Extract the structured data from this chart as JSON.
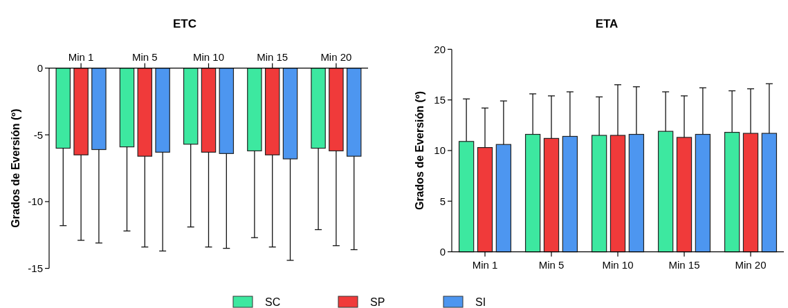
{
  "chart_data": [
    {
      "type": "bar",
      "title": "ETC",
      "ylabel": "Grados de Eversión (º)",
      "categories": [
        "Min 1",
        "Min 5",
        "Min 10",
        "Min 15",
        "Min 20"
      ],
      "ylim": [
        -15,
        0
      ],
      "yticks": [
        -15,
        -10,
        -5,
        0
      ],
      "legend": "bottom",
      "series": [
        {
          "name": "SC",
          "color": "#3de8a0",
          "values": [
            -6.0,
            -5.9,
            -5.7,
            -6.2,
            -6.0
          ],
          "errors": [
            [
              -11.8,
              -6.0
            ],
            [
              -12.2,
              -5.9
            ],
            [
              -11.9,
              -5.7
            ],
            [
              -12.7,
              -6.2
            ],
            [
              -12.1,
              -6.0
            ]
          ]
        },
        {
          "name": "SP",
          "color": "#f03a3a",
          "values": [
            -6.5,
            -6.6,
            -6.3,
            -6.5,
            -6.2
          ],
          "errors": [
            [
              -12.9,
              -6.5
            ],
            [
              -13.4,
              -6.6
            ],
            [
              -13.4,
              -6.3
            ],
            [
              -13.4,
              -6.5
            ],
            [
              -13.3,
              -6.2
            ]
          ]
        },
        {
          "name": "SI",
          "color": "#4d96f0",
          "values": [
            -6.1,
            -6.3,
            -6.4,
            -6.8,
            -6.6
          ],
          "errors": [
            [
              -13.1,
              -6.1
            ],
            [
              -13.7,
              -6.3
            ],
            [
              -13.5,
              -6.4
            ],
            [
              -14.4,
              -6.8
            ],
            [
              -13.6,
              -6.6
            ]
          ]
        }
      ]
    },
    {
      "type": "bar",
      "title": "ETA",
      "ylabel": "Grados de Eversión (º)",
      "categories": [
        "Min 1",
        "Min 5",
        "Min 10",
        "Min 15",
        "Min 20"
      ],
      "ylim": [
        0,
        20
      ],
      "yticks": [
        0,
        5,
        10,
        15,
        20
      ],
      "series": [
        {
          "color": "#3de8a0",
          "values": [
            10.9,
            11.6,
            11.5,
            11.9,
            11.8
          ],
          "errors": [
            [
              10.9,
              15.1
            ],
            [
              11.6,
              15.6
            ],
            [
              11.5,
              15.3
            ],
            [
              11.9,
              15.8
            ],
            [
              11.8,
              15.9
            ]
          ]
        },
        {
          "color": "#f03a3a",
          "values": [
            10.3,
            11.2,
            11.5,
            11.3,
            11.7
          ],
          "errors": [
            [
              10.3,
              14.2
            ],
            [
              11.2,
              15.4
            ],
            [
              11.5,
              16.5
            ],
            [
              11.3,
              15.4
            ],
            [
              11.7,
              16.1
            ]
          ]
        },
        {
          "color": "#4d96f0",
          "values": [
            10.6,
            11.4,
            11.6,
            11.6,
            11.7
          ],
          "errors": [
            [
              10.6,
              14.9
            ],
            [
              11.4,
              15.8
            ],
            [
              11.6,
              16.3
            ],
            [
              11.6,
              16.2
            ],
            [
              11.7,
              16.6
            ]
          ]
        }
      ]
    }
  ]
}
